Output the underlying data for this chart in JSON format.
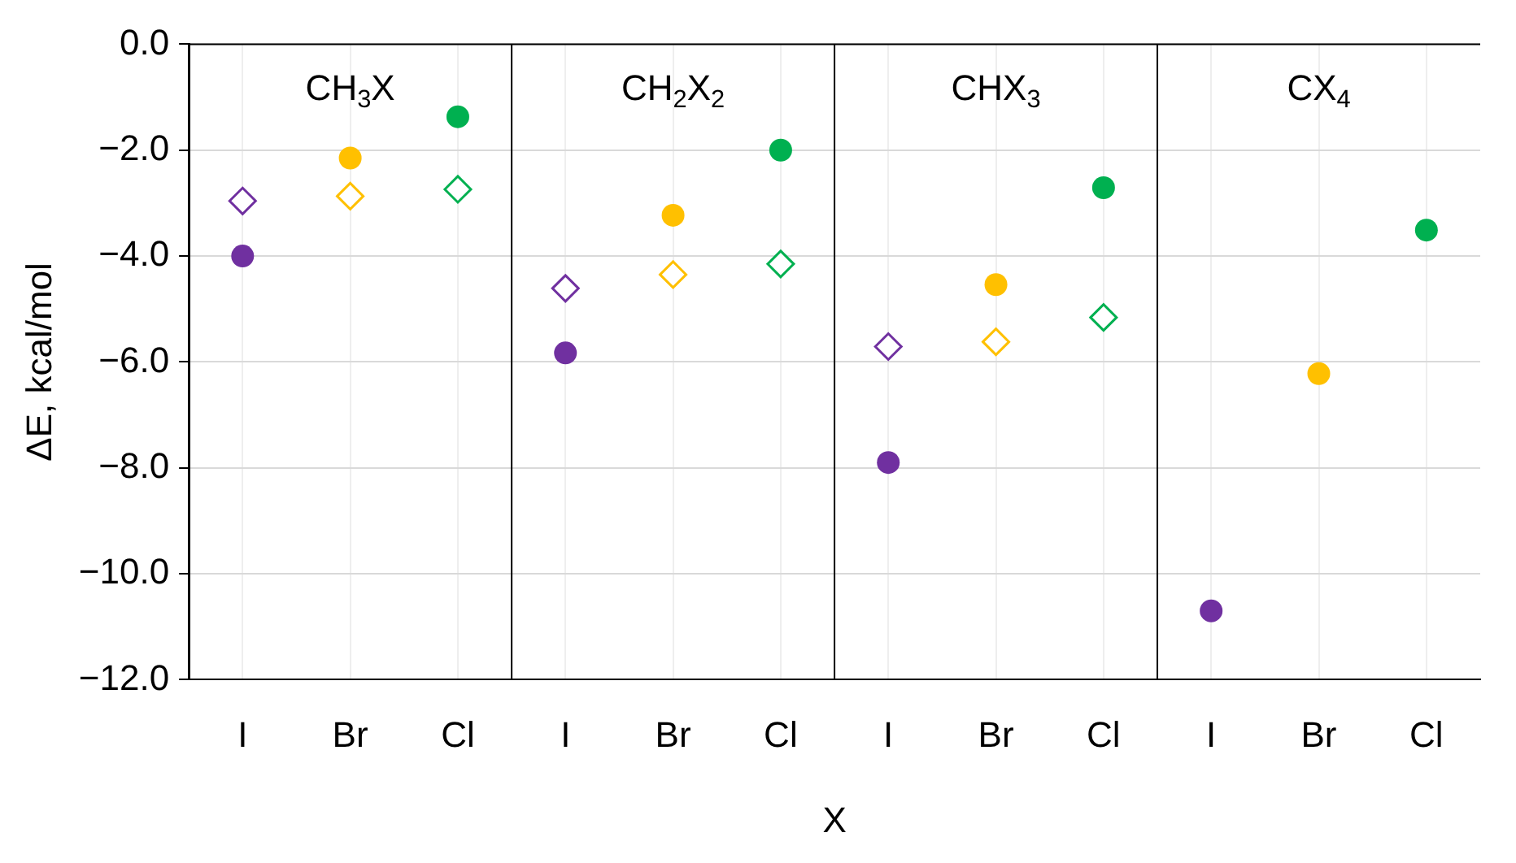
{
  "chart_data": {
    "type": "scatter",
    "xlabel": "X",
    "ylabel": "ΔE, kcal/mol",
    "categories": [
      "I",
      "Br",
      "Cl",
      "I",
      "Br",
      "Cl",
      "I",
      "Br",
      "Cl",
      "I",
      "Br",
      "Cl"
    ],
    "series": [
      {
        "marker": "circle",
        "colors": [
          "#7030a0",
          "#ffc000",
          "#00b050",
          "#7030a0",
          "#ffc000",
          "#00b050",
          "#7030a0",
          "#ffc000",
          "#00b050",
          "#7030a0",
          "#ffc000",
          "#00b050"
        ],
        "values": [
          -4.0,
          -2.15,
          -1.37,
          -5.83,
          -3.23,
          -2.0,
          -7.9,
          -4.54,
          -2.71,
          -10.7,
          -6.22,
          -3.51
        ]
      },
      {
        "marker": "diamond",
        "colors": [
          "#7030a0",
          "#ffc000",
          "#00b050",
          "#7030a0",
          "#ffc000",
          "#00b050",
          "#7030a0",
          "#ffc000",
          "#00b050",
          "#7030a0",
          "#ffc000",
          "#00b050"
        ],
        "values": [
          -2.96,
          -2.87,
          -2.74,
          -4.61,
          -4.35,
          -4.15,
          -5.71,
          -5.62,
          -5.16,
          null,
          null,
          null
        ]
      }
    ],
    "annotations": [
      "CH$_{3}$X",
      "CH$_{2}$X$_{2}$",
      "CHX$_{3}$",
      "CX$_{4}$"
    ],
    "ylim": [
      -12,
      0
    ],
    "yticks": [
      {
        "value": -12,
        "label": "−12.0"
      },
      {
        "value": -10,
        "label": "−10.0"
      },
      {
        "value": -8,
        "label": "−8.0"
      },
      {
        "value": -6,
        "label": "−6.0"
      },
      {
        "value": -4,
        "label": "−4.0"
      },
      {
        "value": -2,
        "label": "−2.0"
      },
      {
        "value": 0,
        "label": "0.0"
      }
    ],
    "grid": true,
    "legend": false
  }
}
